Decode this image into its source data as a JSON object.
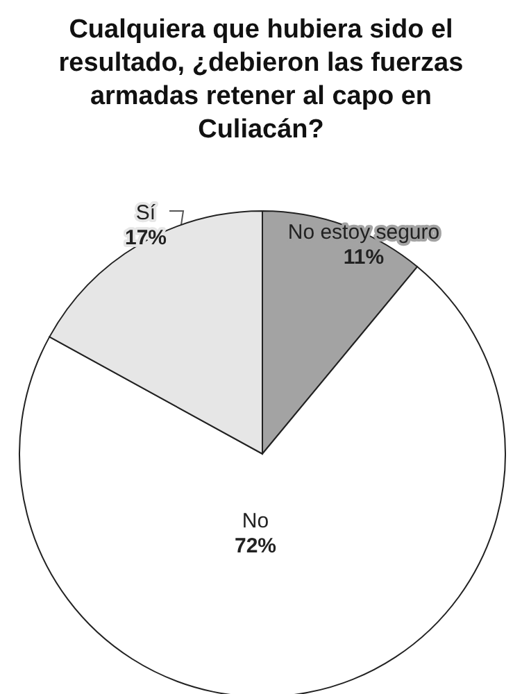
{
  "chart_data": {
    "type": "pie",
    "title": "Cualquiera que hubiera sido el resultado, ¿debieron las fuerzas armadas retener al capo en Culiacán?",
    "categories": [
      "No estoy seguro",
      "No",
      "Sí"
    ],
    "values": [
      11,
      72,
      17
    ],
    "colors": [
      "#a3a3a3",
      "#ffffff",
      "#e6e6e6"
    ],
    "value_labels": [
      "11%",
      "72%",
      "17%"
    ],
    "legend": false
  }
}
